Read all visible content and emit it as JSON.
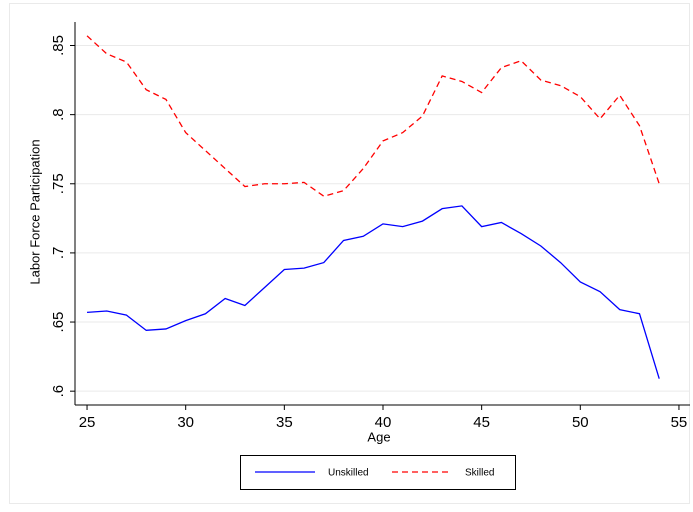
{
  "chart_data": {
    "type": "line",
    "x_label": "Age",
    "y_label": "Labor Force Participation",
    "x": [
      25,
      26,
      27,
      28,
      29,
      30,
      31,
      32,
      33,
      34,
      35,
      36,
      37,
      38,
      39,
      40,
      41,
      42,
      43,
      44,
      45,
      46,
      47,
      48,
      49,
      50,
      51,
      52,
      53,
      54
    ],
    "series": [
      {
        "name": "Unskilled",
        "color": "#0000ff",
        "dash": "solid",
        "values": [
          0.657,
          0.658,
          0.655,
          0.644,
          0.645,
          0.651,
          0.656,
          0.667,
          0.662,
          0.675,
          0.688,
          0.689,
          0.693,
          0.709,
          0.712,
          0.721,
          0.719,
          0.723,
          0.732,
          0.734,
          0.719,
          0.722,
          0.714,
          0.705,
          0.693,
          0.679,
          0.672,
          0.659,
          0.656,
          0.609
        ]
      },
      {
        "name": "Skilled",
        "color": "#ff0000",
        "dash": "dashed",
        "values": [
          0.857,
          0.844,
          0.838,
          0.818,
          0.811,
          0.787,
          0.774,
          0.761,
          0.748,
          0.75,
          0.75,
          0.751,
          0.741,
          0.745,
          0.761,
          0.781,
          0.787,
          0.799,
          0.828,
          0.824,
          0.816,
          0.834,
          0.839,
          0.825,
          0.821,
          0.813,
          0.797,
          0.814,
          0.792,
          0.75
        ]
      }
    ],
    "xlim": [
      24.39,
      55.56
    ],
    "xticks": [
      25,
      30,
      35,
      40,
      45,
      50,
      55
    ],
    "ylim": [
      0.59,
      0.867
    ],
    "yticks": [
      {
        "value": 0.6,
        "label": ".6"
      },
      {
        "value": 0.65,
        "label": ".65"
      },
      {
        "value": 0.7,
        "label": ".7"
      },
      {
        "value": 0.75,
        "label": ".75"
      },
      {
        "value": 0.8,
        "label": ".8"
      },
      {
        "value": 0.85,
        "label": ".85"
      }
    ],
    "grid": true,
    "legend": "bottom"
  }
}
